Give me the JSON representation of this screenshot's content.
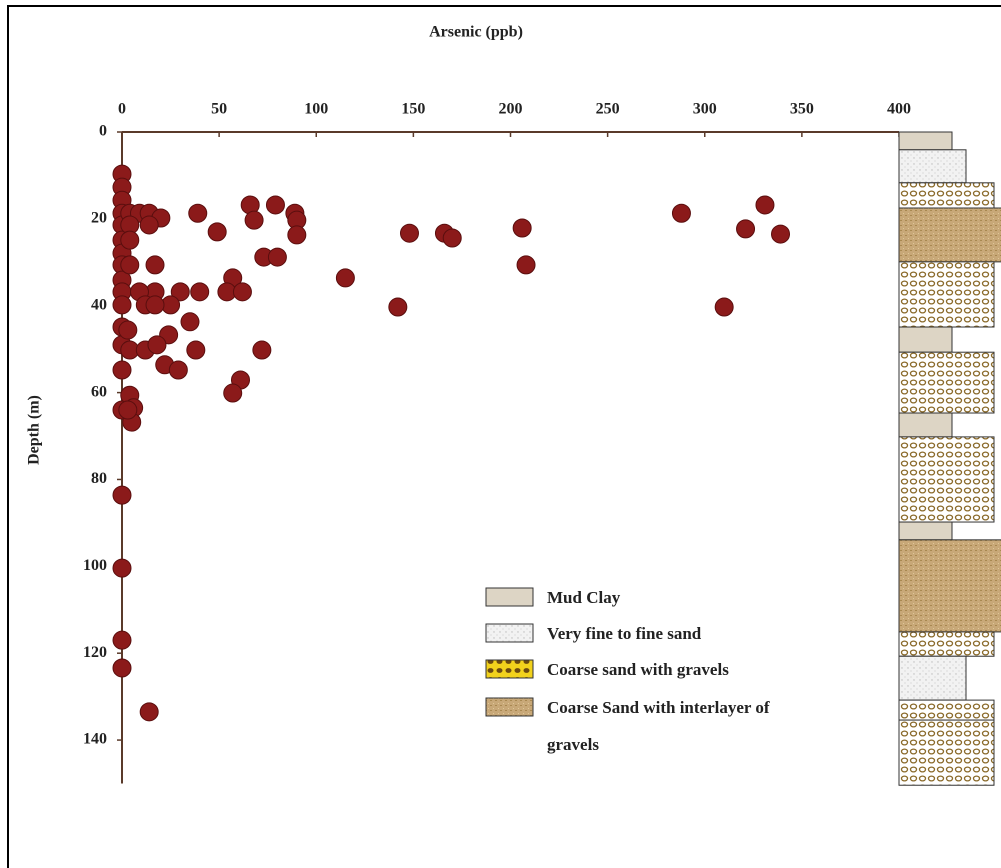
{
  "chart_data": {
    "type": "scatter",
    "title": "Arsenic (ppb)",
    "y_label": "Depth (m)",
    "xlim": [
      0,
      400
    ],
    "xticks": [
      0,
      50,
      100,
      150,
      200,
      250,
      300,
      350,
      400
    ],
    "ylim": [
      0,
      150
    ],
    "yticks": [
      0,
      20,
      40,
      60,
      80,
      100,
      120,
      140
    ],
    "y_inverted": true,
    "color": "#8b1a1a",
    "x": [
      0,
      0,
      0,
      0,
      0,
      0,
      0,
      0,
      0,
      0,
      0,
      0,
      0,
      0,
      0,
      0,
      0,
      0,
      0,
      14,
      4,
      9,
      14,
      20,
      14,
      4,
      4,
      39,
      49,
      66,
      68,
      79,
      89,
      90,
      90,
      73,
      80,
      17,
      4,
      115,
      148,
      166,
      170,
      206,
      208,
      288,
      331,
      321,
      339,
      310,
      142,
      57,
      54,
      62,
      40,
      30,
      17,
      9,
      25,
      12,
      17,
      35,
      24,
      38,
      72,
      3,
      4,
      12,
      18,
      22,
      29,
      61,
      57,
      4,
      6,
      5,
      3
    ],
    "values": [
      9.7,
      12.7,
      15.7,
      18.7,
      21.4,
      24.9,
      27.9,
      30.6,
      34.1,
      36.8,
      39.8,
      44.9,
      49,
      54.8,
      64,
      83.6,
      100.4,
      117,
      123.4,
      133.5,
      18.7,
      18.7,
      18.7,
      19.8,
      21.4,
      21.4,
      24.9,
      18.7,
      23,
      16.8,
      20.3,
      16.8,
      18.7,
      20.3,
      23.7,
      28.8,
      28.8,
      30.6,
      30.6,
      33.6,
      23.3,
      23.3,
      24.4,
      22.1,
      30.6,
      18.7,
      16.8,
      22.3,
      23.5,
      40.3,
      40.3,
      33.6,
      36.8,
      36.8,
      36.8,
      36.8,
      36.8,
      36.8,
      39.8,
      39.8,
      39.8,
      43.7,
      46.7,
      50.2,
      50.2,
      45.6,
      50.2,
      50.2,
      49,
      53.6,
      54.8,
      57.1,
      60.1,
      60.6,
      63.5,
      66.8,
      64
    ],
    "legend": [
      {
        "name": "Mud Clay",
        "color": "#ddd5c5"
      },
      {
        "name": "Very fine to fine sand",
        "color": "#f0f0f0"
      },
      {
        "name": "Coarse sand with gravels",
        "color": "#f2d21c"
      },
      {
        "name": "Coarse Sand with interlayer of gravels",
        "color": "#c8a878"
      }
    ],
    "lithology": [
      {
        "top": 0,
        "bottom": 4.1,
        "unit": "Mud Clay"
      },
      {
        "top": 4.1,
        "bottom": 11.7,
        "unit": "Very fine to fine sand"
      },
      {
        "top": 11.7,
        "bottom": 17.5,
        "unit": "Coarse sand with gravels"
      },
      {
        "top": 17.5,
        "bottom": 29.9,
        "unit": "Coarse Sand with interlayer of gravels"
      },
      {
        "top": 29.9,
        "bottom": 44.9,
        "unit": "Coarse sand with gravels"
      },
      {
        "top": 44.9,
        "bottom": 50.7,
        "unit": "Mud Clay"
      },
      {
        "top": 50.7,
        "bottom": 64.7,
        "unit": "Coarse sand with gravels"
      },
      {
        "top": 64.7,
        "bottom": 70.2,
        "unit": "Mud Clay"
      },
      {
        "top": 70.2,
        "bottom": 89.8,
        "unit": "Coarse sand with gravels"
      },
      {
        "top": 89.8,
        "bottom": 93.9,
        "unit": "Mud Clay"
      },
      {
        "top": 93.9,
        "bottom": 115.1,
        "unit": "Coarse Sand with interlayer of gravels"
      },
      {
        "top": 115.1,
        "bottom": 120.7,
        "unit": "Coarse sand with gravels"
      },
      {
        "top": 120.7,
        "bottom": 130.8,
        "unit": "Very fine to fine sand"
      },
      {
        "top": 130.8,
        "bottom": 135.4,
        "unit": "Coarse sand with gravels"
      },
      {
        "top": 135.4,
        "bottom": 150.4,
        "unit": "Coarse sand with gravels"
      }
    ]
  }
}
